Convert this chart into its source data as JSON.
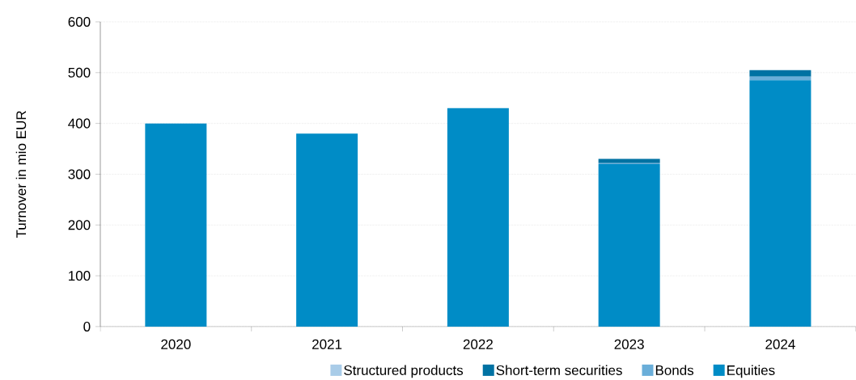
{
  "chart_data": {
    "type": "bar",
    "stacked": true,
    "ylabel": "Turnover in mio EUR",
    "categories": [
      "2020",
      "2021",
      "2022",
      "2023",
      "2024"
    ],
    "series": [
      {
        "name": "Equities",
        "color": "#008cc6",
        "values": [
          400,
          380,
          430,
          320,
          485
        ]
      },
      {
        "name": "Bonds",
        "color": "#6aaed9",
        "values": [
          0,
          0,
          0,
          2,
          7
        ]
      },
      {
        "name": "Short-term securities",
        "color": "#0072a3",
        "values": [
          0,
          0,
          0,
          8,
          13
        ]
      },
      {
        "name": "Structured products",
        "color": "#a9cce8",
        "values": [
          0,
          0,
          0,
          0,
          0
        ]
      }
    ],
    "ylim": [
      0,
      600
    ],
    "yticks": [
      0,
      100,
      200,
      300,
      400,
      500,
      600
    ],
    "grid": "y",
    "legend": "bottom"
  }
}
